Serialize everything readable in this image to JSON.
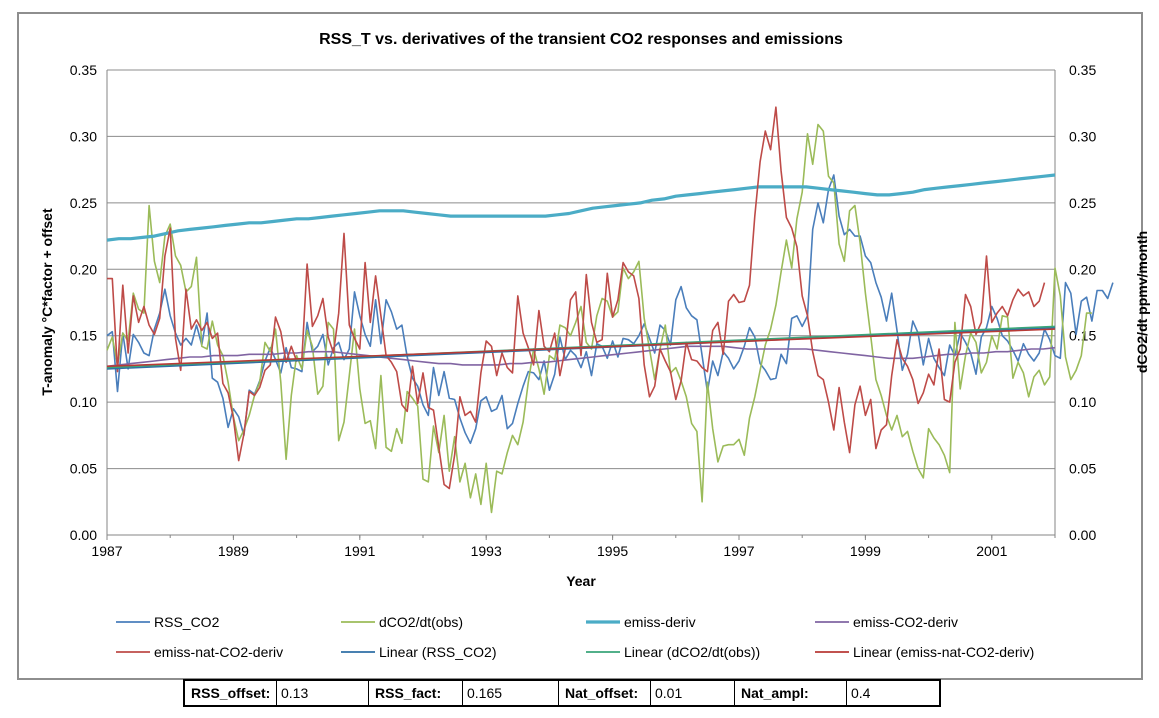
{
  "chart_data": {
    "type": "line",
    "title": "RSS_T vs. derivatives of the transient CO2 responses and emissions",
    "xlabel": "Year",
    "ylabel_left": "T-anomaly °C*factor + offset",
    "ylabel_right": "dCO2/dt ppmv/month",
    "xlim": [
      1987,
      2002
    ],
    "ylim": [
      0,
      0.35
    ],
    "x_ticks": [
      "1987",
      "1989",
      "1991",
      "1993",
      "1995",
      "1997",
      "1999",
      "2001"
    ],
    "y_ticks": [
      "0.00",
      "0.05",
      "0.10",
      "0.15",
      "0.20",
      "0.25",
      "0.30",
      "0.35"
    ],
    "grid": "horizontal",
    "legend_position": "bottom",
    "colors": {
      "rss": "#4a7ebb",
      "obs": "#9bbb59",
      "emiss": "#4bacc6",
      "emiss_co2": "#8064a2",
      "emiss_nat": "#be4b48",
      "lin_rss": "#2f6fa6",
      "lin_obs": "#3aa57a",
      "lin_nat": "#b83a36"
    },
    "series": [
      {
        "name": "RSS_CO2",
        "color_key": "rss",
        "x_start": 1987.0,
        "x_step": 0.0833333,
        "values": [
          0.15,
          0.153,
          0.108,
          0.152,
          0.125,
          0.151,
          0.145,
          0.137,
          0.135,
          0.155,
          0.167,
          0.185,
          0.165,
          0.152,
          0.143,
          0.148,
          0.143,
          0.158,
          0.143,
          0.167,
          0.118,
          0.115,
          0.103,
          0.081,
          0.095,
          0.089,
          0.075,
          0.109,
          0.106,
          0.116,
          0.131,
          0.141,
          0.132,
          0.122,
          0.141,
          0.126,
          0.125,
          0.123,
          0.16,
          0.138,
          0.142,
          0.151,
          0.128,
          0.141,
          0.145,
          0.132,
          0.14,
          0.183,
          0.165,
          0.151,
          0.142,
          0.177,
          0.144,
          0.177,
          0.168,
          0.155,
          0.158,
          0.134,
          0.118,
          0.112,
          0.098,
          0.09,
          0.126,
          0.105,
          0.123,
          0.103,
          0.102,
          0.088,
          0.077,
          0.069,
          0.08,
          0.101,
          0.104,
          0.093,
          0.095,
          0.105,
          0.08,
          0.084,
          0.099,
          0.112,
          0.123,
          0.122,
          0.117,
          0.131,
          0.109,
          0.121,
          0.149,
          0.132,
          0.139,
          0.135,
          0.126,
          0.138,
          0.12,
          0.144,
          0.142,
          0.133,
          0.146,
          0.134,
          0.148,
          0.147,
          0.144,
          0.15,
          0.159,
          0.148,
          0.137,
          0.158,
          0.154,
          0.143,
          0.177,
          0.187,
          0.171,
          0.165,
          0.162,
          0.135,
          0.108,
          0.131,
          0.12,
          0.138,
          0.133,
          0.125,
          0.131,
          0.142,
          0.156,
          0.149,
          0.129,
          0.124,
          0.117,
          0.118,
          0.136,
          0.129,
          0.163,
          0.165,
          0.157,
          0.165,
          0.23,
          0.25,
          0.235,
          0.26,
          0.271,
          0.24,
          0.226,
          0.23,
          0.225,
          0.225,
          0.21,
          0.205,
          0.19,
          0.179,
          0.161,
          0.182,
          0.154,
          0.124,
          0.136,
          0.161,
          0.152,
          0.128,
          0.148,
          0.133,
          0.126,
          0.12,
          0.143,
          0.135,
          0.152,
          0.145,
          0.137,
          0.121,
          0.149,
          0.156,
          0.172,
          0.163,
          0.15,
          0.146,
          0.139,
          0.131,
          0.144,
          0.136,
          0.131,
          0.137,
          0.155,
          0.147,
          0.135,
          0.133,
          0.19,
          0.182,
          0.151,
          0.176,
          0.179,
          0.161,
          0.184,
          0.184,
          0.178,
          0.19
        ]
      },
      {
        "name": "dCO2/dt(obs)",
        "color_key": "obs",
        "x_start": 1987.0,
        "x_step": 0.0833333,
        "values": [
          0.139,
          0.149,
          0.128,
          0.152,
          0.146,
          0.182,
          0.17,
          0.167,
          0.248,
          0.206,
          0.19,
          0.225,
          0.234,
          0.21,
          0.203,
          0.183,
          0.187,
          0.209,
          0.142,
          0.14,
          0.161,
          0.143,
          0.135,
          0.115,
          0.089,
          0.071,
          0.079,
          0.09,
          0.105,
          0.115,
          0.145,
          0.138,
          0.155,
          0.115,
          0.057,
          0.105,
          0.135,
          0.125,
          0.154,
          0.142,
          0.106,
          0.112,
          0.16,
          0.155,
          0.071,
          0.085,
          0.12,
          0.155,
          0.11,
          0.084,
          0.086,
          0.065,
          0.12,
          0.066,
          0.063,
          0.08,
          0.069,
          0.108,
          0.103,
          0.097,
          0.042,
          0.04,
          0.082,
          0.062,
          0.09,
          0.048,
          0.074,
          0.04,
          0.054,
          0.028,
          0.046,
          0.023,
          0.054,
          0.017,
          0.048,
          0.046,
          0.062,
          0.075,
          0.068,
          0.085,
          0.115,
          0.14,
          0.125,
          0.106,
          0.135,
          0.132,
          0.158,
          0.156,
          0.15,
          0.16,
          0.172,
          0.145,
          0.14,
          0.165,
          0.178,
          0.176,
          0.164,
          0.168,
          0.201,
          0.193,
          0.198,
          0.206,
          0.163,
          0.14,
          0.117,
          0.14,
          0.158,
          0.122,
          0.126,
          0.116,
          0.104,
          0.084,
          0.078,
          0.025,
          0.115,
          0.08,
          0.055,
          0.067,
          0.068,
          0.068,
          0.072,
          0.06,
          0.088,
          0.104,
          0.124,
          0.143,
          0.155,
          0.173,
          0.198,
          0.222,
          0.201,
          0.238,
          0.258,
          0.302,
          0.279,
          0.309,
          0.304,
          0.27,
          0.265,
          0.219,
          0.206,
          0.244,
          0.248,
          0.22,
          0.182,
          0.15,
          0.117,
          0.105,
          0.09,
          0.079,
          0.09,
          0.074,
          0.078,
          0.063,
          0.05,
          0.043,
          0.08,
          0.073,
          0.068,
          0.06,
          0.047,
          0.16,
          0.11,
          0.135,
          0.152,
          0.145,
          0.122,
          0.13,
          0.15,
          0.14,
          0.165,
          0.164,
          0.118,
          0.13,
          0.122,
          0.104,
          0.119,
          0.124,
          0.113,
          0.119,
          0.201,
          0.18,
          0.134,
          0.117,
          0.124,
          0.135,
          0.167,
          0.167
        ]
      },
      {
        "name": "emiss-deriv",
        "color_key": "emiss",
        "x_start": 1987.0,
        "x_step": 0.0833333,
        "values": [
          0.222,
          0.223,
          0.223,
          0.224,
          0.225,
          0.227,
          0.229,
          0.23,
          0.231,
          0.232,
          0.233,
          0.234,
          0.235,
          0.235,
          0.236,
          0.237,
          0.238,
          0.238,
          0.239,
          0.24,
          0.241,
          0.242,
          0.243,
          0.244,
          0.244,
          0.244,
          0.243,
          0.242,
          0.241,
          0.24,
          0.24,
          0.24,
          0.24,
          0.24,
          0.24,
          0.24,
          0.24,
          0.24,
          0.241,
          0.242,
          0.244,
          0.246,
          0.247,
          0.248,
          0.249,
          0.25,
          0.252,
          0.253,
          0.255,
          0.256,
          0.257,
          0.258,
          0.259,
          0.26,
          0.261,
          0.262,
          0.262,
          0.262,
          0.262,
          0.262,
          0.261,
          0.26,
          0.259,
          0.258,
          0.257,
          0.256,
          0.256,
          0.257,
          0.258,
          0.26,
          0.261,
          0.262,
          0.263,
          0.264,
          0.265,
          0.266,
          0.267,
          0.268,
          0.269,
          0.27,
          0.271
        ]
      },
      {
        "name": "emiss-CO2-deriv",
        "color_key": "emiss_co2",
        "x_start": 1987.0,
        "x_step": 0.0833333,
        "values": [
          0.127,
          0.128,
          0.129,
          0.13,
          0.131,
          0.132,
          0.133,
          0.134,
          0.134,
          0.135,
          0.135,
          0.135,
          0.136,
          0.136,
          0.136,
          0.137,
          0.137,
          0.138,
          0.138,
          0.138,
          0.137,
          0.136,
          0.135,
          0.134,
          0.133,
          0.132,
          0.131,
          0.13,
          0.129,
          0.129,
          0.128,
          0.128,
          0.128,
          0.128,
          0.129,
          0.129,
          0.13,
          0.13,
          0.131,
          0.132,
          0.133,
          0.134,
          0.135,
          0.136,
          0.137,
          0.138,
          0.139,
          0.14,
          0.141,
          0.142,
          0.142,
          0.142,
          0.142,
          0.141,
          0.14,
          0.14,
          0.14,
          0.14,
          0.14,
          0.14,
          0.139,
          0.138,
          0.137,
          0.136,
          0.135,
          0.134,
          0.133,
          0.133,
          0.133,
          0.134,
          0.135,
          0.136,
          0.136,
          0.137,
          0.137,
          0.138,
          0.138,
          0.139,
          0.14,
          0.14,
          0.141
        ]
      },
      {
        "name": "emiss-nat-CO2-deriv",
        "color_key": "emiss_nat",
        "x_start": 1987.0,
        "x_step": 0.0833333,
        "values": [
          0.193,
          0.193,
          0.123,
          0.188,
          0.137,
          0.18,
          0.16,
          0.172,
          0.158,
          0.151,
          0.163,
          0.21,
          0.231,
          0.148,
          0.124,
          0.185,
          0.155,
          0.162,
          0.154,
          0.16,
          0.148,
          0.152,
          0.114,
          0.107,
          0.088,
          0.056,
          0.076,
          0.108,
          0.105,
          0.111,
          0.124,
          0.128,
          0.164,
          0.153,
          0.13,
          0.142,
          0.131,
          0.133,
          0.204,
          0.157,
          0.165,
          0.178,
          0.149,
          0.137,
          0.167,
          0.227,
          0.158,
          0.148,
          0.14,
          0.205,
          0.16,
          0.195,
          0.165,
          0.135,
          0.13,
          0.123,
          0.098,
          0.093,
          0.127,
          0.099,
          0.122,
          0.096,
          0.094,
          0.066,
          0.038,
          0.035,
          0.06,
          0.104,
          0.09,
          0.093,
          0.085,
          0.122,
          0.146,
          0.142,
          0.12,
          0.137,
          0.126,
          0.122,
          0.18,
          0.152,
          0.141,
          0.128,
          0.169,
          0.142,
          0.138,
          0.152,
          0.12,
          0.14,
          0.177,
          0.183,
          0.135,
          0.196,
          0.16,
          0.145,
          0.147,
          0.197,
          0.164,
          0.177,
          0.205,
          0.198,
          0.195,
          0.178,
          0.128,
          0.104,
          0.112,
          0.14,
          0.131,
          0.123,
          0.102,
          0.116,
          0.145,
          0.132,
          0.131,
          0.126,
          0.123,
          0.154,
          0.16,
          0.136,
          0.176,
          0.181,
          0.175,
          0.176,
          0.188,
          0.24,
          0.281,
          0.304,
          0.29,
          0.322,
          0.274,
          0.239,
          0.231,
          0.217,
          0.18,
          0.165,
          0.138,
          0.12,
          0.117,
          0.1,
          0.079,
          0.111,
          0.085,
          0.062,
          0.098,
          0.112,
          0.09,
          0.102,
          0.065,
          0.079,
          0.083,
          0.12,
          0.147,
          0.133,
          0.127,
          0.117,
          0.099,
          0.107,
          0.121,
          0.113,
          0.14,
          0.102,
          0.1,
          0.13,
          0.14,
          0.181,
          0.172,
          0.151,
          0.16,
          0.21,
          0.16,
          0.167,
          0.172,
          0.165,
          0.177,
          0.185,
          0.18,
          0.183,
          0.172,
          0.176,
          0.19
        ]
      },
      {
        "name": "Linear (RSS_CO2)",
        "color_key": "lin_rss",
        "x": [
          1987,
          2002
        ],
        "values": [
          0.125,
          0.156
        ]
      },
      {
        "name": "Linear (dCO2/dt(obs))",
        "color_key": "lin_obs",
        "x": [
          1987,
          2002
        ],
        "values": [
          0.126,
          0.157
        ]
      },
      {
        "name": "Linear (emiss-nat-CO2-deriv)",
        "color_key": "lin_nat",
        "x": [
          1987,
          2002
        ],
        "values": [
          0.127,
          0.155
        ]
      }
    ],
    "legend": [
      "RSS_CO2",
      "dCO2/dt(obs)",
      "emiss-deriv",
      "emiss-CO2-deriv",
      "emiss-nat-CO2-deriv",
      "Linear (RSS_CO2)",
      "Linear (dCO2/dt(obs))",
      "Linear (emiss-nat-CO2-deriv)"
    ]
  },
  "params": {
    "rss_offset_label": "RSS_offset:",
    "rss_offset_value": "0.13",
    "rss_fact_label": "RSS_fact:",
    "rss_fact_value": "0.165",
    "nat_offset_label": "Nat_offset:",
    "nat_offset_value": "0.01",
    "nat_ampl_label": "Nat_ampl:",
    "nat_ampl_value": "0.4"
  }
}
